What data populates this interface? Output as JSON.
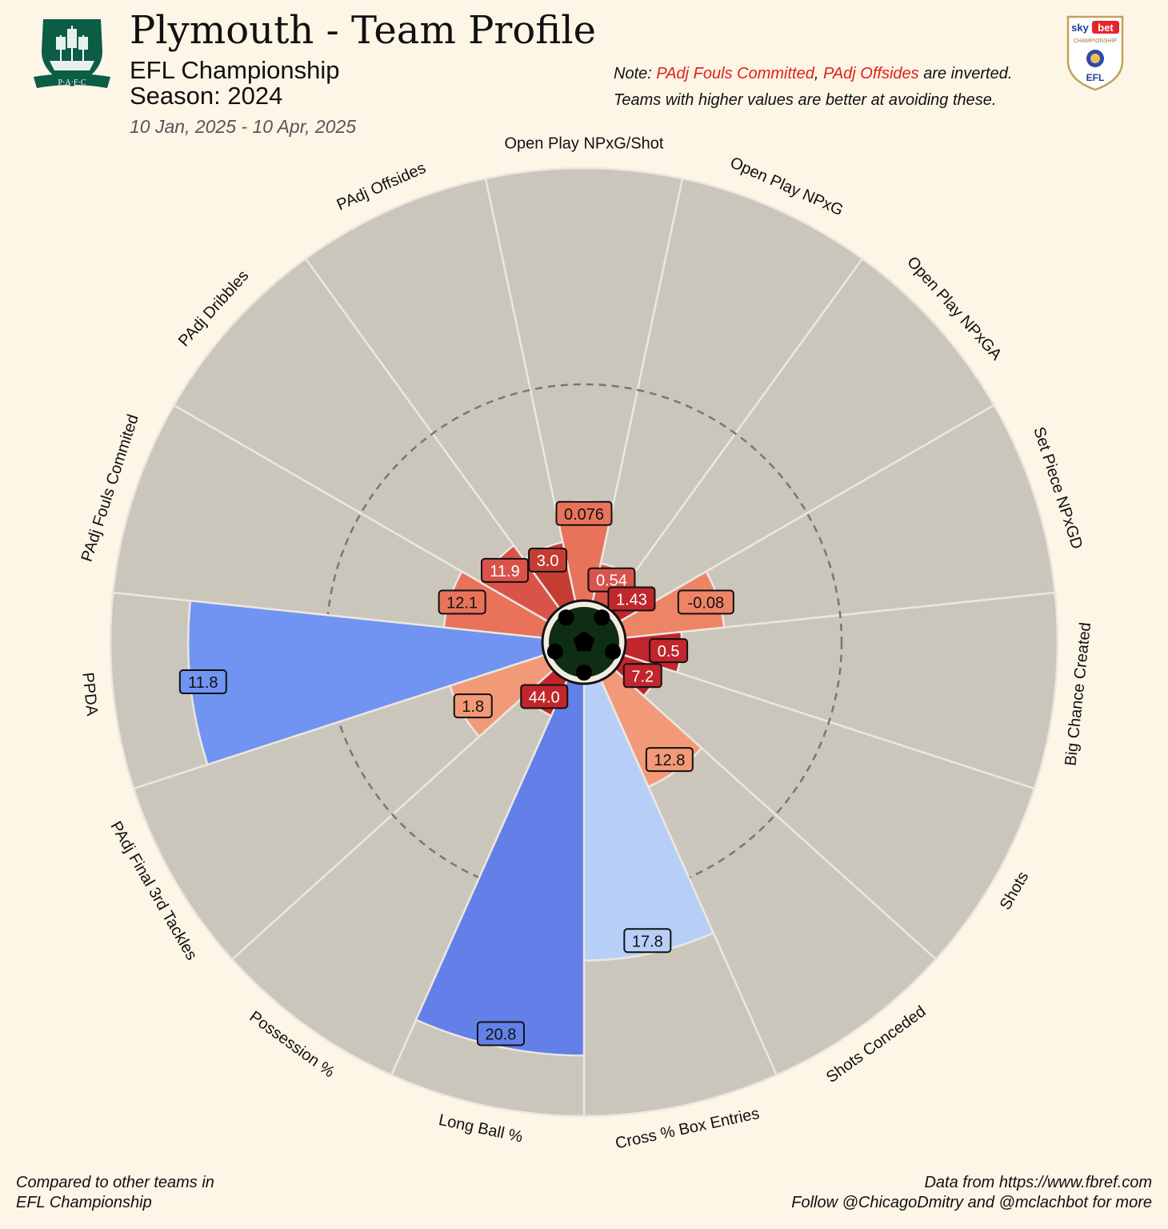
{
  "header": {
    "title": "Plymouth - Team Profile",
    "league": "EFL Championship",
    "season": "Season: 2024",
    "date_range": "10 Jan, 2025 - 10 Apr, 2025"
  },
  "note": {
    "prefix": "Note: ",
    "metric1": "PAdj Fouls Committed",
    "comma": ", ",
    "metric2": "PAdj Offsides",
    "suffix": " are inverted.",
    "line2": "Teams with higher values are better at avoiding these."
  },
  "footer": {
    "left_line1": "Compared to other teams in",
    "left_line2": "EFL Championship",
    "right_line1": "Data from https://www.fbref.com",
    "right_line2": "Follow @ChicagoDmitry and @mclachbot for more"
  },
  "logos": {
    "club_text": "P·A·F·C",
    "league_badge_line1": "sky",
    "league_badge_line2": "bet",
    "league_badge_line3": "CHAMPIONSHIP",
    "league_badge_line4": "EFL"
  },
  "colors": {
    "background": "#fdf5e6",
    "slice_bg": "#cbc6bc",
    "slice_border": "#ebe7df"
  },
  "chart_data": {
    "type": "polar_bar",
    "value_scale": "percentile",
    "rlim": [
      0,
      100
    ],
    "reference_ring": 50,
    "grid": false,
    "metrics": [
      {
        "label": "Open Play NPxG/Shot",
        "value": "0.076",
        "percentile": 23,
        "color": "#e8735a"
      },
      {
        "label": "Open Play NPxG",
        "value": "0.54",
        "percentile": 9,
        "color": "#d9534a"
      },
      {
        "label": "Open Play NPxGA",
        "value": "1.43",
        "percentile": 5,
        "color": "#c0262c"
      },
      {
        "label": "Set Piece NPxGD",
        "value": "-0.08",
        "percentile": 23,
        "color": "#ee8466"
      },
      {
        "label": "Big Chance Created",
        "value": "0.5",
        "percentile": 13,
        "color": "#c0262c"
      },
      {
        "label": "Shots",
        "value": "7.2",
        "percentile": 9,
        "color": "#c0262c"
      },
      {
        "label": "Shots Conceded",
        "value": "12.8",
        "percentile": 27,
        "color": "#f29a78"
      },
      {
        "label": "Cross % Box Entries",
        "value": "17.8",
        "percentile": 64,
        "color": "#b7cff7"
      },
      {
        "label": "Long Ball %",
        "value": "20.8",
        "percentile": 86,
        "color": "#6280e8"
      },
      {
        "label": "Possession %",
        "value": "44.0",
        "percentile": 9,
        "color": "#c0262c"
      },
      {
        "label": "PAdj Final 3rd Tackles",
        "value": "1.8",
        "percentile": 23,
        "color": "#f29a78"
      },
      {
        "label": "PPDA",
        "value": "11.8",
        "percentile": 82,
        "color": "#7194f2"
      },
      {
        "label": "PAdj Fouls Commited",
        "value": "12.1",
        "percentile": 23,
        "color": "#e8735a"
      },
      {
        "label": "PAdj Dribbles",
        "value": "11.9",
        "percentile": 18,
        "color": "#d9534a"
      },
      {
        "label": "PAdj Offsides",
        "value": "3.0",
        "percentile": 14,
        "color": "#c53c33"
      }
    ]
  }
}
